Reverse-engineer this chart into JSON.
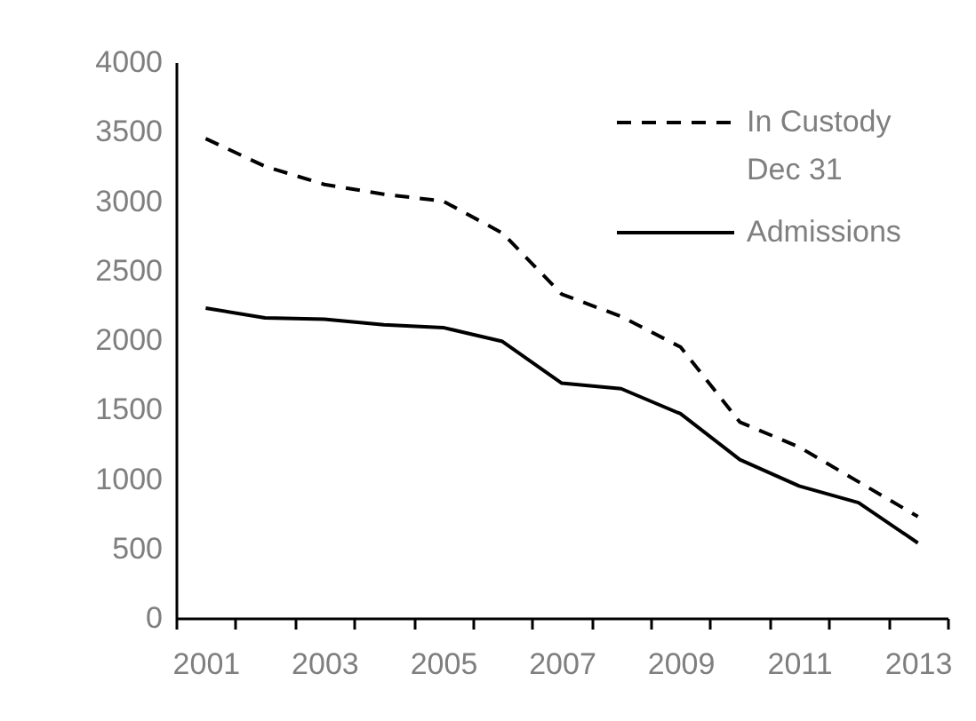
{
  "chart_data": {
    "type": "line",
    "categories": [
      "2001",
      null,
      "2003",
      null,
      "2005",
      null,
      "2007",
      null,
      "2009",
      null,
      "2011",
      null,
      "2013"
    ],
    "series": [
      {
        "name": "In Custody Dec 31",
        "color": "#000000",
        "line_style": "dashed",
        "values": [
          3450,
          3250,
          3120,
          3050,
          3000,
          2770,
          2330,
          2170,
          1950,
          1410,
          1230,
          980,
          730
        ]
      },
      {
        "name": "Admissions",
        "color": "#000000",
        "line_style": "solid",
        "values": [
          2230,
          2160,
          2150,
          2110,
          2090,
          1990,
          1690,
          1650,
          1470,
          1140,
          950,
          830,
          540
        ]
      }
    ],
    "ylim": [
      0,
      4000
    ],
    "yticks": [
      0,
      500,
      1000,
      1500,
      2000,
      2500,
      3000,
      3500,
      4000
    ],
    "grid": false,
    "legend": "top right",
    "marker": "none"
  }
}
